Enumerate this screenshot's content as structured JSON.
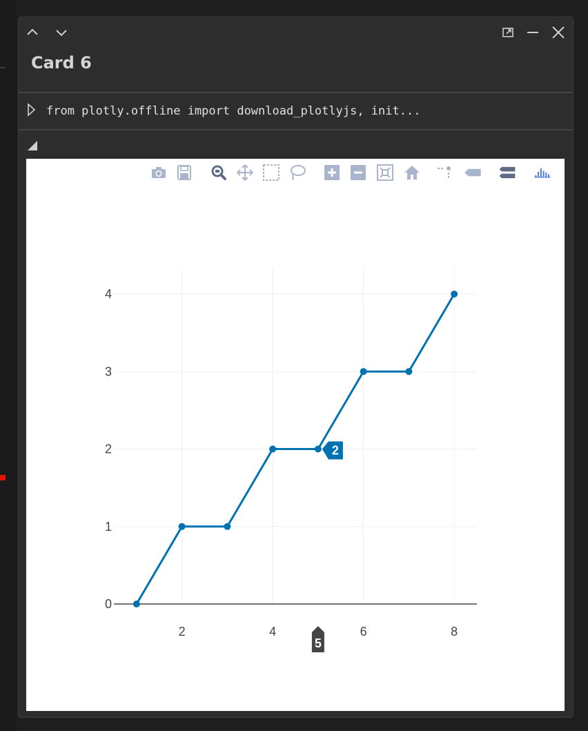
{
  "card": {
    "title": "Card 6",
    "controls": [
      "chevron-up-icon",
      "chevron-down-icon",
      "popout-icon",
      "minimize-icon",
      "close-icon"
    ]
  },
  "code": {
    "preview": "from plotly.offline import download_plotlyjs, init..."
  },
  "modebar": {
    "buttons": [
      "camera-icon",
      "save-icon",
      "zoom-icon",
      "pan-icon",
      "box-select-icon",
      "lasso-icon",
      "zoom-in-icon",
      "zoom-out-icon",
      "autoscale-icon",
      "home-icon",
      "spike-lines-icon",
      "hover-closest-icon",
      "hover-compare-icon",
      "plotly-logo-icon"
    ],
    "active": "zoom-icon"
  },
  "chart_data": {
    "type": "line",
    "x": [
      1,
      2,
      3,
      4,
      5,
      6,
      7,
      8
    ],
    "y": [
      0,
      1,
      1,
      2,
      2,
      3,
      3,
      4
    ],
    "mode": "lines+markers",
    "line_color": "#0072b2",
    "x_ticks": [
      2,
      4,
      6,
      8
    ],
    "y_ticks": [
      0,
      1,
      2,
      3,
      4
    ],
    "xlim": [
      0.5,
      8.5
    ],
    "ylim": [
      0,
      4
    ],
    "grid": true,
    "hover": {
      "x": 5,
      "y": 2,
      "x_label": "5",
      "y_label": "2"
    }
  },
  "colors": {
    "accent": "#0072b2",
    "hover_x": "#444444",
    "grid": "#eeeeee",
    "modebar_icon": "#a8b5cd",
    "modebar_active": "#5e6b85",
    "logo": "#3f73e0"
  }
}
